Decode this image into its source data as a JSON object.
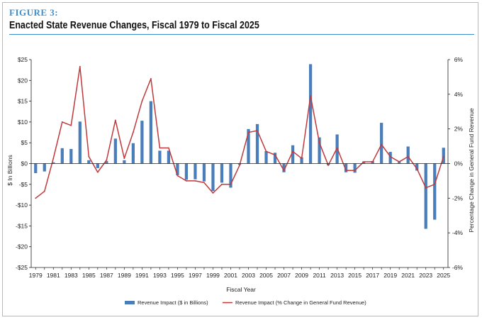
{
  "figure": {
    "label": "FIGURE 3:",
    "title": "Enacted State Revenue Changes, Fiscal 1979 to Fiscal 2025"
  },
  "colors": {
    "accent": "#3b8fd0",
    "bar": "#4a7ebb",
    "line": "#c0393b",
    "axis": "#222222"
  },
  "chart_data": {
    "type": "bar+line",
    "xlabel": "Fiscal Year",
    "ylabel": "$ In Billions",
    "y2label": "Percentage Change in General Fund Revenue",
    "ylim": [
      -25,
      25
    ],
    "y2lim": [
      -6,
      6
    ],
    "yticks": [
      "$25",
      "$20",
      "$15",
      "$10",
      "$5",
      "$0",
      "-$5",
      "-$10",
      "-$15",
      "-$20",
      "-$25"
    ],
    "y2ticks": [
      "6%",
      "4%",
      "2%",
      "0%",
      "-2%",
      "-4%",
      "-6%"
    ],
    "xticks": [
      "1979",
      "1981",
      "1983",
      "1985",
      "1987",
      "1989",
      "1991",
      "1993",
      "1995",
      "1997",
      "1999",
      "2001",
      "2003",
      "2005",
      "2007",
      "2009",
      "2011",
      "2013",
      "2015",
      "2017",
      "2019",
      "2021",
      "2023",
      "2025"
    ],
    "years": [
      1979,
      1980,
      1981,
      1982,
      1983,
      1984,
      1985,
      1986,
      1987,
      1988,
      1989,
      1990,
      1991,
      1992,
      1993,
      1994,
      1995,
      1996,
      1997,
      1998,
      1999,
      2000,
      2001,
      2002,
      2003,
      2004,
      2005,
      2006,
      2007,
      2008,
      2009,
      2010,
      2011,
      2012,
      2013,
      2014,
      2015,
      2016,
      2017,
      2018,
      2019,
      2020,
      2021,
      2022,
      2023,
      2024,
      2025
    ],
    "series": [
      {
        "name": "Revenue Impact ($ in Billions)",
        "kind": "bar",
        "axis": "left",
        "values": [
          -2.3,
          -1.9,
          0.3,
          3.7,
          3.5,
          10.1,
          0.8,
          -1.1,
          0.6,
          6.0,
          0.8,
          4.9,
          10.3,
          15.0,
          3.1,
          3.1,
          -2.8,
          -3.9,
          -3.8,
          -4.3,
          -6.6,
          -4.6,
          -5.8,
          -0.3,
          8.3,
          9.5,
          3.0,
          2.6,
          -2.1,
          4.4,
          1.5,
          23.9,
          6.3,
          -0.4,
          7.0,
          -2.1,
          -2.2,
          0.5,
          0.6,
          9.8,
          2.8,
          0.4,
          4.1,
          -1.7,
          -15.7,
          -13.5,
          3.8
        ]
      },
      {
        "name": "Revenue Impact (% Change in General Fund Revenue)",
        "kind": "line",
        "axis": "right",
        "values": [
          -2.0,
          -1.6,
          0.3,
          2.4,
          2.2,
          5.6,
          0.4,
          -0.5,
          0.2,
          2.5,
          0.3,
          1.8,
          3.6,
          4.9,
          0.9,
          0.9,
          -0.7,
          -1.0,
          -1.0,
          -1.1,
          -1.7,
          -1.2,
          -1.2,
          -0.1,
          1.8,
          1.9,
          0.7,
          0.5,
          -0.4,
          0.7,
          0.3,
          3.9,
          1.2,
          -0.1,
          0.9,
          -0.4,
          -0.4,
          0.1,
          0.1,
          1.1,
          0.4,
          0.1,
          0.4,
          -0.3,
          -1.4,
          -1.2,
          0.4
        ]
      }
    ],
    "legend_position": "bottom"
  }
}
